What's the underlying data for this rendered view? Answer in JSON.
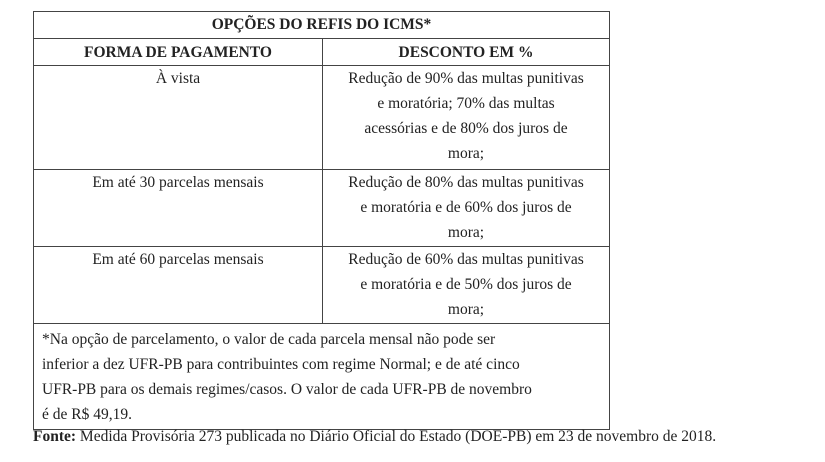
{
  "table": {
    "title": "OPÇÕES DO REFIS DO ICMS*",
    "headers": [
      "FORMA DE PAGAMENTO",
      "DESCONTO EM %"
    ],
    "rows": [
      {
        "forma": "À vista",
        "desconto": [
          "Redução de 90% das multas punitivas",
          "e moratória; 70% das multas",
          "acessórias e de 80% dos juros de",
          "mora;"
        ]
      },
      {
        "forma": "Em até 30 parcelas mensais",
        "desconto": [
          "Redução de 80% das multas punitivas",
          "e moratória e de 60% dos juros de",
          "mora;"
        ]
      },
      {
        "forma": "Em até 60 parcelas mensais",
        "desconto": [
          "Redução de 60% das multas punitivas",
          "e moratória e de 50% dos juros de",
          "mora;"
        ]
      }
    ],
    "footnote": [
      "*Na opção de parcelamento, o valor de cada parcela mensal não pode ser",
      "inferior a dez UFR-PB para contribuintes com regime Normal; e de até cinco",
      "UFR-PB para os demais regimes/casos. O valor de cada UFR-PB de novembro",
      "é de R$ 49,19."
    ]
  },
  "source": {
    "label": "Fonte:",
    "text": " Medida Provisória 273 publicada no Diário Oficial do Estado (DOE-PB) em 23 de novembro de 2018."
  }
}
